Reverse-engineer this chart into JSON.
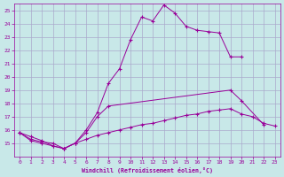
{
  "xlabel": "Windchill (Refroidissement éolien,°C)",
  "bg_color": "#c8e8e8",
  "grid_color": "#aaaacc",
  "line_color": "#990099",
  "xlim": [
    -0.5,
    23.5
  ],
  "ylim": [
    14,
    25.5
  ],
  "yticks": [
    15,
    16,
    17,
    18,
    19,
    20,
    21,
    22,
    23,
    24,
    25
  ],
  "xticks": [
    0,
    1,
    2,
    3,
    4,
    5,
    6,
    7,
    8,
    9,
    10,
    11,
    12,
    13,
    14,
    15,
    16,
    17,
    18,
    19,
    20,
    21,
    22,
    23
  ],
  "line1_x": [
    0,
    1,
    2,
    3,
    4,
    5,
    6,
    7,
    8,
    9,
    10,
    11,
    12,
    13,
    14,
    15,
    16,
    17,
    18,
    19,
    20
  ],
  "line1_y": [
    15.8,
    15.5,
    15.2,
    14.8,
    14.6,
    15.0,
    16.0,
    17.3,
    19.5,
    20.6,
    22.8,
    24.5,
    24.2,
    25.4,
    24.8,
    23.8,
    23.5,
    23.4,
    23.3,
    21.5,
    21.5
  ],
  "line2_x": [
    0,
    1,
    2,
    3,
    4,
    5,
    6,
    7,
    8,
    19,
    20,
    22
  ],
  "line2_y": [
    15.8,
    15.2,
    15.0,
    14.8,
    14.6,
    15.0,
    15.8,
    17.0,
    17.8,
    19.0,
    18.2,
    16.4
  ],
  "line3_x": [
    0,
    1,
    2,
    3,
    4,
    5,
    6,
    7,
    8,
    9,
    10,
    11,
    12,
    13,
    14,
    15,
    16,
    17,
    18,
    19,
    20,
    21,
    22,
    23
  ],
  "line3_y": [
    15.8,
    15.3,
    15.1,
    15.0,
    14.6,
    15.0,
    15.3,
    15.6,
    15.8,
    16.0,
    16.2,
    16.4,
    16.5,
    16.7,
    16.9,
    17.1,
    17.2,
    17.4,
    17.5,
    17.6,
    17.2,
    17.0,
    16.5,
    16.3
  ]
}
